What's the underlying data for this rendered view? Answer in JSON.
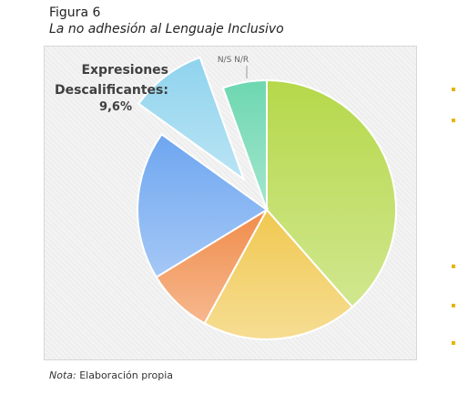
{
  "figure": {
    "number": "Figura 6",
    "subtitle": "La no adhesión al Lenguaje Inclusivo"
  },
  "note": {
    "prefix": "Nota:",
    "text": " Elaboración propia"
  },
  "chart_data": {
    "type": "pie",
    "title": "",
    "slices": [
      {
        "label": "",
        "value": 38.5,
        "color": "#b5d84a",
        "exploded": false
      },
      {
        "label": "",
        "value": 19.5,
        "color": "#f0c850",
        "exploded": false
      },
      {
        "label": "",
        "value": 8.3,
        "color": "#f08c4a",
        "exploded": false
      },
      {
        "label": "",
        "value": 18.6,
        "color": "#6ea6f0",
        "exploded": false
      },
      {
        "label": "Expresiones Descalificantes:",
        "value": 9.6,
        "value_label": "9,6%",
        "color": "#8fd3ee",
        "exploded": true
      },
      {
        "label": "N/S N/R",
        "value": 5.5,
        "color": "#6dd7b0",
        "exploded": false
      }
    ]
  }
}
